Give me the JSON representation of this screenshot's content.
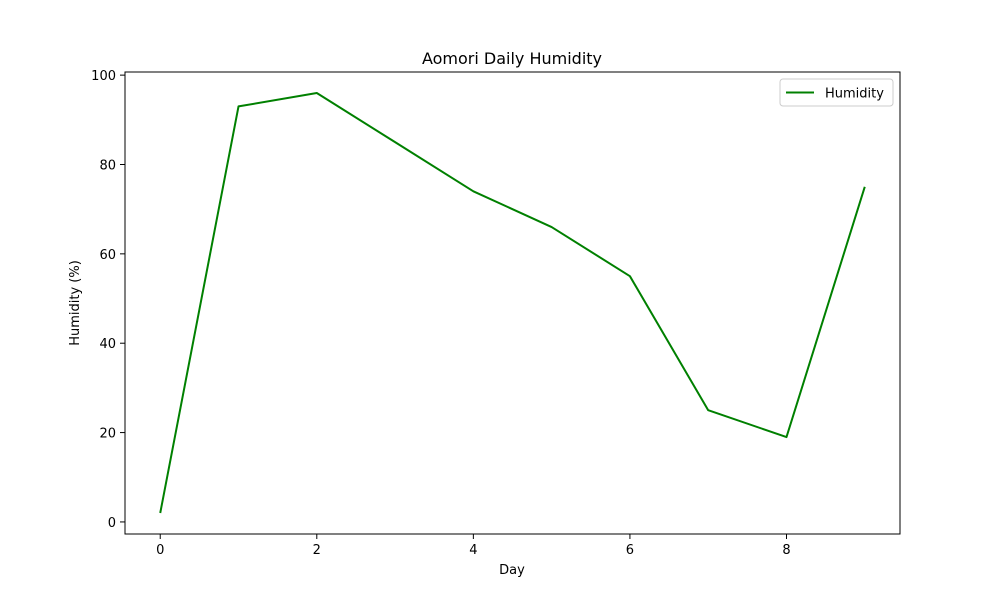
{
  "chart_data": {
    "type": "line",
    "title": "Aomori Daily Humidity",
    "xlabel": "Day",
    "ylabel": "Humidity (%)",
    "x": [
      0,
      1,
      2,
      3,
      4,
      5,
      6,
      7,
      8,
      9
    ],
    "series": [
      {
        "name": "Humidity",
        "values": [
          2,
          93,
          96,
          85,
          74,
          66,
          55,
          25,
          19,
          75
        ],
        "color": "#008000"
      }
    ],
    "xlim": [
      -0.45,
      9.45
    ],
    "ylim": [
      -2.7,
      100.7
    ],
    "xticks": [
      0,
      2,
      4,
      6,
      8
    ],
    "yticks": [
      0,
      20,
      40,
      60,
      80,
      100
    ],
    "grid": false,
    "legend": "upper right"
  }
}
